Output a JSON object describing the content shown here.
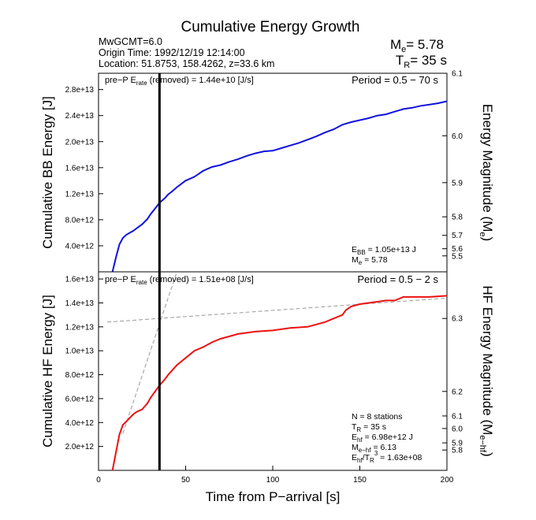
{
  "header": {
    "title": "Cumulative Energy Growth",
    "info": [
      "MwGCMT=6.0",
      "Origin Time: 1992/12/19 12:14:00",
      "Location: 51.8753, 158.4262, z=33.6 km"
    ],
    "me_base": "M",
    "me_sub": "e",
    "me_rest": "= 5.78",
    "tr_base": "T",
    "tr_sub": "R",
    "tr_rest": "= 35 s"
  },
  "xaxis": {
    "label": "Time from P−arrival [s]",
    "range": [
      0,
      200
    ],
    "ticks": [
      0,
      50,
      100,
      150,
      200
    ],
    "tick_labels": [
      "0",
      "50",
      "100",
      "150",
      "200"
    ]
  },
  "tr_marker_x": 35,
  "panels": {
    "top": {
      "ylabel": "Cumulative BB Energy [J]",
      "ylabel_right_base": "Energy Magnitude (M",
      "ylabel_right_sub": "e",
      "ylabel_right_close": ")",
      "ylim": [
        0,
        30500000000000.0
      ],
      "yticks": [
        4000000000000.0,
        8000000000000.0,
        12000000000000.0,
        16000000000000.0,
        20000000000000.0,
        24000000000000.0,
        28000000000000.0
      ],
      "ytick_labels": [
        "4.0e+12",
        "8.0e+12",
        "1.2e+13",
        "1.6e+13",
        "2.0e+13",
        "2.4e+13",
        "2.8e+13"
      ],
      "right_ticks": [
        {
          "label": "6.1",
          "y": 30500000000000.0
        },
        {
          "label": "6.0",
          "y": 20900000000000.0
        },
        {
          "label": "5.9",
          "y": 13700000000000.0
        },
        {
          "label": "5.8",
          "y": 8450000000000.0
        },
        {
          "label": "5.7",
          "y": 5600000000000.0
        },
        {
          "label": "5.6",
          "y": 3550000000000.0
        },
        {
          "label": "5.5",
          "y": 2450000000000.0
        }
      ],
      "rate_pre": "pre−P E",
      "rate_sub": "rate",
      "rate_post": " (removed) = 1.44e+10 [J/s]",
      "period": "Period = 0.5 − 70 s",
      "ebb_base": "E",
      "ebb_sub": "BB",
      "ebb_rest": " = 1.05e+13 J",
      "me_base": "M",
      "me_sub": "e",
      "me_rest": " = 5.78"
    },
    "bottom": {
      "ylabel": "Cumulative HF Energy [J]",
      "ylabel_right_base": "HF Energy Magnitude (M",
      "ylabel_right_sub": "e−hf",
      "ylabel_right_close": ")",
      "ylim": [
        0,
        16600000000000.0
      ],
      "yticks": [
        2000000000000.0,
        4000000000000.0,
        6000000000000.0,
        8000000000000.0,
        10000000000000.0,
        12000000000000.0,
        14000000000000.0,
        16000000000000.0
      ],
      "ytick_labels": [
        "2.0e+12",
        "4.0e+12",
        "6.0e+12",
        "8.0e+12",
        "1.0e+13",
        "1.2e+13",
        "1.4e+13",
        "1.6e+13"
      ],
      "right_ticks": [
        {
          "label": "6.3",
          "y": 12700000000000.0
        },
        {
          "label": "6.2",
          "y": 6600000000000.0
        },
        {
          "label": "6.1",
          "y": 4550000000000.0
        },
        {
          "label": "6.0",
          "y": 3500000000000.0
        },
        {
          "label": "5.9",
          "y": 2300000000000.0
        },
        {
          "label": "5.8",
          "y": 1700000000000.0
        }
      ],
      "rate_pre": "pre−P E",
      "rate_sub": "rate",
      "rate_post": " (removed) = 1.51e+08 [J/s]",
      "period": "Period = 0.5 − 2 s",
      "stats": [
        {
          "base": "N = 8 stations",
          "sub": "",
          "rest": ""
        },
        {
          "base": "T",
          "sub": "R",
          "rest": " = 35  s"
        },
        {
          "base": "E",
          "sub": "hf",
          "rest": " = 6.98e+12 J"
        },
        {
          "base": "M",
          "sub": "e−hf",
          "rest": " = 6.13"
        },
        {
          "base": "E",
          "sub": "hf",
          "rest": "/T",
          "sup": "3",
          "sub2": "R",
          "rest2": " =  1.63e+08"
        }
      ]
    }
  },
  "chart_data": [
    {
      "type": "line",
      "title": "Cumulative Energy Growth",
      "xlabel": "Time from P−arrival [s]",
      "ylabel": "Cumulative BB Energy [J]",
      "xlim": [
        0,
        200
      ],
      "ylim": [
        0,
        30500000000000.0
      ],
      "grid": false,
      "series": [
        {
          "color": "#1010e0",
          "x": [
            8,
            10,
            12,
            14,
            16,
            18,
            20,
            22,
            25,
            28,
            30,
            33,
            35,
            38,
            40,
            42,
            45,
            48,
            50,
            55,
            60,
            65,
            70,
            75,
            80,
            85,
            90,
            95,
            100,
            105,
            110,
            115,
            120,
            125,
            130,
            135,
            140,
            145,
            150,
            155,
            160,
            165,
            170,
            175,
            180,
            185,
            190,
            195,
            200
          ],
          "y": [
            0,
            2200000000000.0,
            4200000000000.0,
            5200000000000.0,
            5700000000000.0,
            6000000000000.0,
            6300000000000.0,
            6700000000000.0,
            7300000000000.0,
            8100000000000.0,
            8900000000000.0,
            9900000000000.0,
            10600000000000.0,
            11300000000000.0,
            11900000000000.0,
            12300000000000.0,
            13000000000000.0,
            13600000000000.0,
            14000000000000.0,
            14600000000000.0,
            15500000000000.0,
            16100000000000.0,
            16400000000000.0,
            16900000000000.0,
            17300000000000.0,
            17800000000000.0,
            18200000000000.0,
            18500000000000.0,
            18600000000000.0,
            19000000000000.0,
            19400000000000.0,
            19800000000000.0,
            20300000000000.0,
            20800000000000.0,
            21400000000000.0,
            21900000000000.0,
            22600000000000.0,
            23000000000000.0,
            23300000000000.0,
            23600000000000.0,
            24000000000000.0,
            24200000000000.0,
            24600000000000.0,
            25000000000000.0,
            25200000000000.0,
            25500000000000.0,
            25700000000000.0,
            25900000000000.0,
            26200000000000.0
          ]
        }
      ]
    },
    {
      "type": "line",
      "xlabel": "Time from P−arrival [s]",
      "ylabel": "Cumulative HF Energy [J]",
      "xlim": [
        0,
        200
      ],
      "ylim": [
        0,
        16600000000000.0
      ],
      "grid": false,
      "series": [
        {
          "color": "#ee1010",
          "x": [
            8,
            10,
            12,
            14,
            16,
            18,
            20,
            22,
            25,
            28,
            30,
            33,
            35,
            38,
            40,
            45,
            50,
            55,
            60,
            65,
            70,
            75,
            80,
            90,
            100,
            110,
            120,
            125,
            130,
            135,
            140,
            142,
            145,
            150,
            155,
            160,
            165,
            170,
            175,
            180,
            190,
            200
          ],
          "y": [
            0,
            1500000000000.0,
            3000000000000.0,
            3800000000000.0,
            4100000000000.0,
            4400000000000.0,
            4700000000000.0,
            4900000000000.0,
            5100000000000.0,
            5600000000000.0,
            6100000000000.0,
            6700000000000.0,
            7100000000000.0,
            7600000000000.0,
            8000000000000.0,
            8800000000000.0,
            9400000000000.0,
            10000000000000.0,
            10300000000000.0,
            10700000000000.0,
            11000000000000.0,
            11200000000000.0,
            11400000000000.0,
            11600000000000.0,
            11700000000000.0,
            11900000000000.0,
            12000000000000.0,
            12200000000000.0,
            12400000000000.0,
            12700000000000.0,
            13000000000000.0,
            13400000000000.0,
            13700000000000.0,
            13900000000000.0,
            14000000000000.0,
            14100000000000.0,
            14200000000000.0,
            14200000000000.0,
            14500000000000.0,
            14500000000000.0,
            14500000000000.0,
            14600000000000.0
          ]
        },
        {
          "color": "#999999",
          "dashed": true,
          "x": [
            5,
            200
          ],
          "y": [
            12400000000000.0,
            14400000000000.0
          ]
        },
        {
          "color": "#999999",
          "dashed": true,
          "x": [
            14,
            45
          ],
          "y": [
            3100000000000.0,
            16600000000000.0
          ]
        }
      ]
    }
  ]
}
